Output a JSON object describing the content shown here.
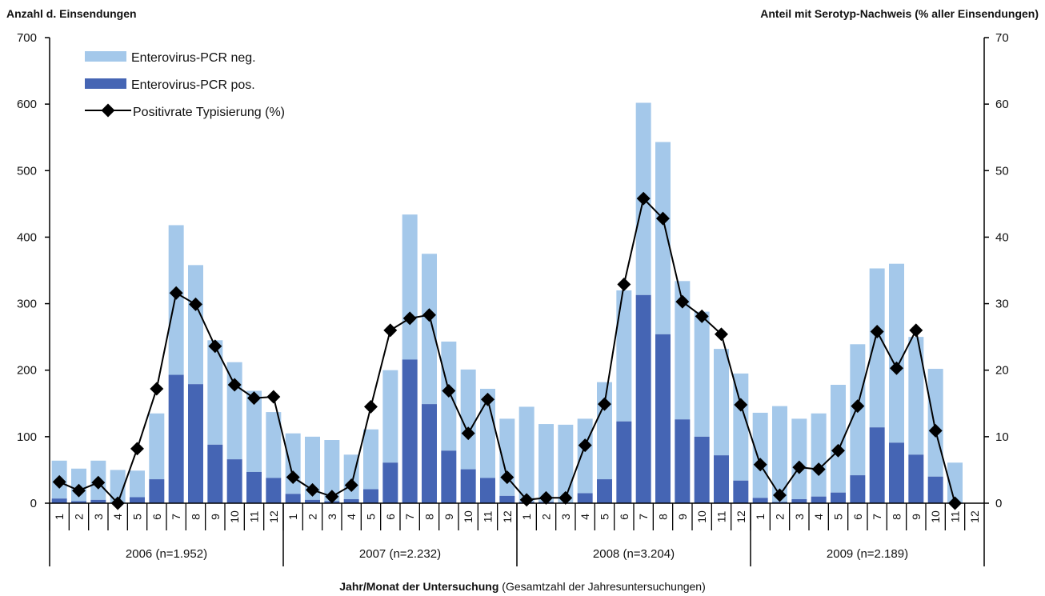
{
  "chart_data": {
    "type": "bar",
    "stacked": true,
    "secondary_axis": true,
    "y_left": {
      "title": "Anzahl d. Einsendungen",
      "min": 0,
      "max": 700,
      "ticks": [
        0,
        100,
        200,
        300,
        400,
        500,
        600,
        700
      ]
    },
    "y_right": {
      "title": "Anteil mit Serotyp-Nachweis (% aller Einsendungen)",
      "min": 0,
      "max": 70,
      "ticks": [
        0,
        10,
        20,
        30,
        40,
        50,
        60,
        70
      ]
    },
    "x_axis": {
      "title_bold": "Jahr/Monat der Untersuchung",
      "title_rest": " (Gesamtzahl der Jahresuntersuchungen)"
    },
    "groups": [
      {
        "label": "2006 (n=1.952)",
        "months": [
          "1",
          "2",
          "3",
          "4",
          "5",
          "6",
          "7",
          "8",
          "9",
          "10",
          "11",
          "12"
        ]
      },
      {
        "label": "2007 (n=2.232)",
        "months": [
          "1",
          "2",
          "3",
          "4",
          "5",
          "6",
          "7",
          "8",
          "9",
          "10",
          "11",
          "12"
        ]
      },
      {
        "label": "2008 (n=3.204)",
        "months": [
          "1",
          "2",
          "3",
          "4",
          "5",
          "6",
          "7",
          "8",
          "9",
          "10",
          "11",
          "12"
        ]
      },
      {
        "label": "2009 (n=2.189)",
        "months": [
          "1",
          "2",
          "3",
          "4",
          "5",
          "6",
          "7",
          "8",
          "9",
          "10",
          "11",
          "12"
        ]
      }
    ],
    "legend": {
      "position": "top-left",
      "entries": [
        {
          "key": "neg",
          "label": "Enterovirus-PCR neg."
        },
        {
          "key": "pos",
          "label": "Enterovirus-PCR pos."
        },
        {
          "key": "rate",
          "label": "Positivrate Typisierung (%)"
        }
      ]
    },
    "colors": {
      "neg": "#a4c8ea",
      "pos": "#4565b4",
      "line": "#000000"
    },
    "series": [
      {
        "name": "Enterovirus-PCR pos.",
        "key": "pos",
        "axis": "left",
        "values": [
          7,
          3,
          5,
          1,
          9,
          36,
          193,
          179,
          88,
          66,
          47,
          38,
          14,
          5,
          3,
          6,
          21,
          61,
          216,
          149,
          79,
          51,
          38,
          11,
          2,
          2,
          1,
          15,
          36,
          123,
          313,
          254,
          126,
          100,
          72,
          34,
          8,
          2,
          6,
          10,
          16,
          42,
          114,
          91,
          73,
          40,
          1,
          null
        ]
      },
      {
        "name": "Enterovirus-PCR neg.",
        "key": "neg",
        "axis": "left",
        "values": [
          57,
          49,
          59,
          49,
          40,
          99,
          225,
          179,
          157,
          146,
          122,
          99,
          91,
          95,
          92,
          67,
          90,
          139,
          218,
          226,
          164,
          150,
          134,
          116,
          143,
          117,
          117,
          112,
          146,
          197,
          289,
          289,
          208,
          188,
          160,
          161,
          128,
          144,
          121,
          125,
          162,
          197,
          239,
          269,
          177,
          162,
          60,
          null
        ]
      },
      {
        "name": "Positivrate Typisierung (%)",
        "key": "rate",
        "axis": "right",
        "type": "line",
        "values": [
          3.2,
          1.9,
          3.1,
          0.0,
          8.2,
          17.2,
          31.6,
          29.9,
          23.6,
          17.8,
          15.8,
          16.0,
          3.9,
          2.0,
          1.0,
          2.7,
          14.5,
          26.0,
          27.8,
          28.3,
          16.9,
          10.5,
          15.6,
          3.9,
          0.5,
          0.8,
          0.8,
          8.7,
          14.9,
          32.9,
          45.8,
          42.8,
          30.3,
          28.1,
          25.4,
          14.8,
          5.8,
          1.2,
          5.4,
          5.1,
          7.9,
          14.6,
          25.8,
          20.3,
          26.0,
          10.9,
          0.0,
          null
        ]
      }
    ]
  }
}
